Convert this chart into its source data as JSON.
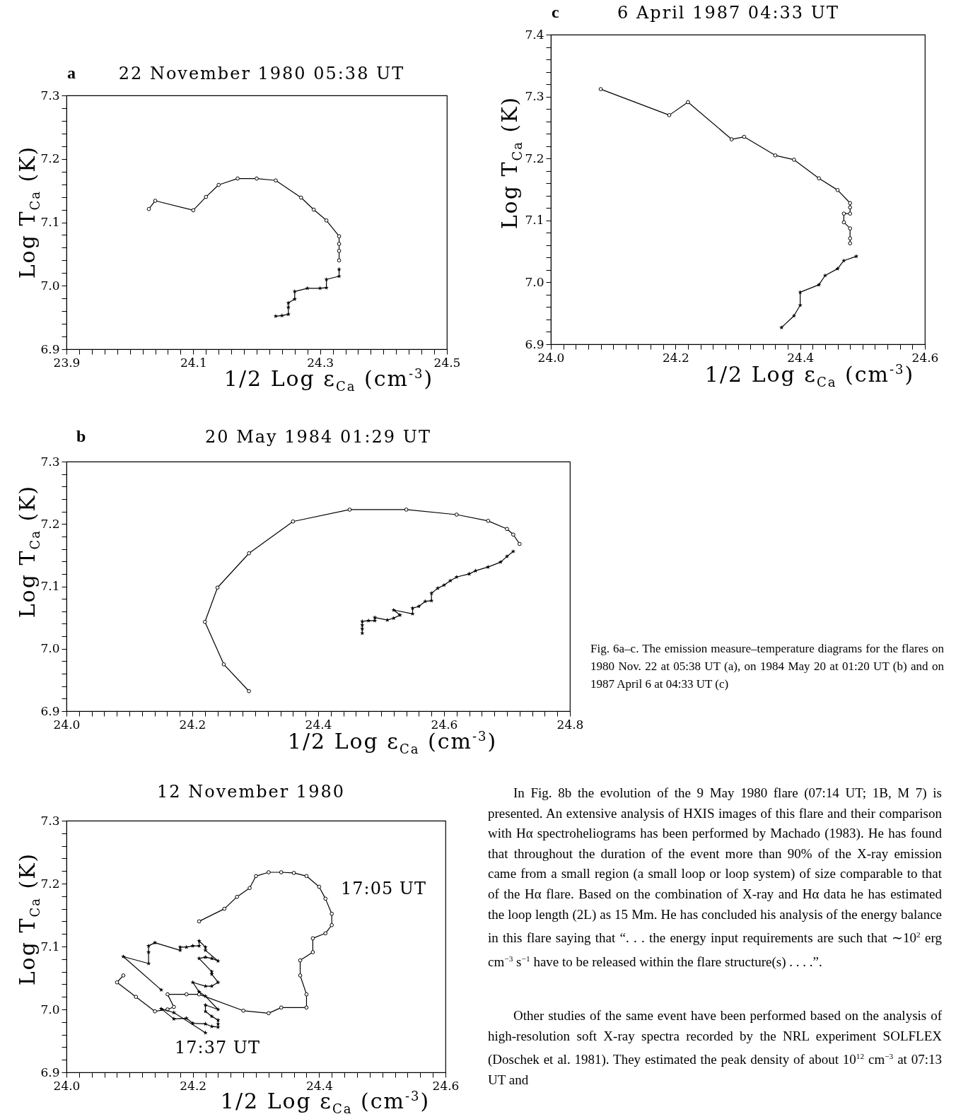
{
  "chart_data": [
    {
      "type": "line",
      "title": "22 November 1980 05:38 UT",
      "xlabel": "1/2 Log ε$_{Ca}$ (cm$^{-3}$)",
      "ylabel": "Log T$_{Ca}$ (K)",
      "grid": false,
      "xlim": [
        23.9,
        24.5
      ],
      "ylim": [
        6.9,
        7.3
      ],
      "xticks": [
        23.9,
        {
          "value": 23.92,
          "label": null
        },
        {
          "value": 23.94,
          "label": null
        },
        {
          "value": 23.96,
          "label": null
        },
        {
          "value": 23.98,
          "label": null
        },
        {
          "value": 24.0,
          "label": null
        },
        {
          "value": 24.02,
          "label": null
        },
        {
          "value": 24.04,
          "label": null
        },
        {
          "value": 24.06,
          "label": null
        },
        {
          "value": 24.08,
          "label": null
        },
        24.1,
        {
          "value": 24.12,
          "label": null
        },
        {
          "value": 24.14,
          "label": null
        },
        {
          "value": 24.16,
          "label": null
        },
        {
          "value": 24.18,
          "label": null
        },
        {
          "value": 24.2,
          "label": null
        },
        {
          "value": 24.22,
          "label": null
        },
        {
          "value": 24.24,
          "label": null
        },
        {
          "value": 24.26,
          "label": null
        },
        {
          "value": 24.28,
          "label": null
        },
        24.3,
        {
          "value": 24.32,
          "label": null
        },
        {
          "value": 24.34,
          "label": null
        },
        {
          "value": 24.36,
          "label": null
        },
        {
          "value": 24.38,
          "label": null
        },
        {
          "value": 24.4,
          "label": null
        },
        {
          "value": 24.42,
          "label": null
        },
        {
          "value": 24.44,
          "label": null
        },
        {
          "value": 24.46,
          "label": null
        },
        {
          "value": 24.48,
          "label": null
        },
        24.5
      ],
      "yticks": [
        6.9,
        {
          "value": 6.92,
          "label": null
        },
        {
          "value": 6.94,
          "label": null
        },
        {
          "value": 6.96,
          "label": null
        },
        {
          "value": 6.98,
          "label": null
        },
        {
          "value": 7.0,
          "label": "7.0"
        },
        {
          "value": 7.02,
          "label": null
        },
        {
          "value": 7.04,
          "label": null
        },
        {
          "value": 7.06,
          "label": null
        },
        {
          "value": 7.08,
          "label": null
        },
        7.1,
        {
          "value": 7.12,
          "label": null
        },
        {
          "value": 7.14,
          "label": null
        },
        {
          "value": 7.16,
          "label": null
        },
        {
          "value": 7.18,
          "label": null
        },
        7.2,
        {
          "value": 7.22,
          "label": null
        },
        {
          "value": 7.24,
          "label": null
        },
        {
          "value": 7.26,
          "label": null
        },
        {
          "value": 7.28,
          "label": null
        },
        7.3
      ],
      "series": [
        {
          "marker": "circle",
          "color": "#000000",
          "x": [
            24.03,
            24.04,
            24.1,
            24.12,
            24.14,
            24.17,
            24.2,
            24.23,
            24.27,
            24.29,
            24.31,
            24.33,
            24.33,
            24.33,
            24.33
          ],
          "values": [
            7.121,
            7.134,
            7.119,
            7.14,
            7.159,
            7.169,
            7.169,
            7.166,
            7.139,
            7.12,
            7.103,
            7.078,
            7.066,
            7.055,
            7.04
          ]
        },
        {
          "marker": "star",
          "color": "#000000",
          "x": [
            24.33,
            24.33,
            24.31,
            24.31,
            24.3,
            24.28,
            24.26,
            24.26,
            24.25,
            24.25,
            24.25,
            24.24,
            24.23
          ],
          "values": [
            7.026,
            7.015,
            7.01,
            6.997,
            6.996,
            6.996,
            6.991,
            6.979,
            6.973,
            6.966,
            6.955,
            6.953,
            6.952
          ]
        }
      ],
      "annotations": [
        "a"
      ]
    },
    {
      "type": "line",
      "title": "6 April 1987 04:33 UT",
      "xlabel": "1/2 Log ε$_{Ca}$ (cm$^{-3}$)",
      "ylabel": "Log T$_{Ca}$ (K)",
      "grid": false,
      "xlim": [
        24.0,
        24.6
      ],
      "ylim": [
        6.9,
        7.4
      ],
      "xticks": [
        {
          "value": 24.0,
          "label": "24.0"
        },
        {
          "value": 24.02,
          "label": null
        },
        {
          "value": 24.04,
          "label": null
        },
        {
          "value": 24.06,
          "label": null
        },
        {
          "value": 24.08,
          "label": null
        },
        {
          "value": 24.1,
          "label": null
        },
        {
          "value": 24.12,
          "label": null
        },
        {
          "value": 24.14,
          "label": null
        },
        {
          "value": 24.16,
          "label": null
        },
        {
          "value": 24.18,
          "label": null
        },
        24.2,
        {
          "value": 24.22,
          "label": null
        },
        {
          "value": 24.24,
          "label": null
        },
        {
          "value": 24.26,
          "label": null
        },
        {
          "value": 24.28,
          "label": null
        },
        {
          "value": 24.3,
          "label": null
        },
        {
          "value": 24.32,
          "label": null
        },
        {
          "value": 24.34,
          "label": null
        },
        {
          "value": 24.36,
          "label": null
        },
        {
          "value": 24.38,
          "label": null
        },
        24.4,
        {
          "value": 24.42,
          "label": null
        },
        {
          "value": 24.44,
          "label": null
        },
        {
          "value": 24.46,
          "label": null
        },
        {
          "value": 24.48,
          "label": null
        },
        {
          "value": 24.5,
          "label": null
        },
        {
          "value": 24.52,
          "label": null
        },
        {
          "value": 24.54,
          "label": null
        },
        {
          "value": 24.56,
          "label": null
        },
        {
          "value": 24.58,
          "label": null
        },
        24.6
      ],
      "yticks": [
        6.9,
        {
          "value": 6.92,
          "label": null
        },
        {
          "value": 6.94,
          "label": null
        },
        {
          "value": 6.96,
          "label": null
        },
        {
          "value": 6.98,
          "label": null
        },
        {
          "value": 7.0,
          "label": "7.0"
        },
        {
          "value": 7.02,
          "label": null
        },
        {
          "value": 7.04,
          "label": null
        },
        {
          "value": 7.06,
          "label": null
        },
        {
          "value": 7.08,
          "label": null
        },
        7.1,
        {
          "value": 7.12,
          "label": null
        },
        {
          "value": 7.14,
          "label": null
        },
        {
          "value": 7.16,
          "label": null
        },
        {
          "value": 7.18,
          "label": null
        },
        7.2,
        {
          "value": 7.22,
          "label": null
        },
        {
          "value": 7.24,
          "label": null
        },
        {
          "value": 7.26,
          "label": null
        },
        {
          "value": 7.28,
          "label": null
        },
        7.3,
        {
          "value": 7.32,
          "label": null
        },
        {
          "value": 7.34,
          "label": null
        },
        {
          "value": 7.36,
          "label": null
        },
        {
          "value": 7.38,
          "label": null
        },
        7.4
      ],
      "series": [
        {
          "marker": "circle",
          "color": "#000000",
          "x": [
            24.08,
            24.19,
            24.22,
            24.29,
            24.31,
            24.36,
            24.39,
            24.43,
            24.46,
            24.48,
            24.48,
            24.48,
            24.47,
            24.47,
            24.48,
            24.48,
            24.48
          ],
          "values": [
            7.312,
            7.27,
            7.291,
            7.231,
            7.235,
            7.205,
            7.198,
            7.168,
            7.149,
            7.128,
            7.121,
            7.111,
            7.111,
            7.097,
            7.087,
            7.071,
            7.063
          ]
        },
        {
          "marker": "star",
          "color": "#000000",
          "x": [
            24.49,
            24.47,
            24.46,
            24.44,
            24.43,
            24.4,
            24.4,
            24.39,
            24.37
          ],
          "values": [
            7.042,
            7.035,
            7.022,
            7.011,
            6.996,
            6.984,
            6.963,
            6.946,
            6.927
          ]
        }
      ],
      "annotations": [
        "c"
      ]
    },
    {
      "type": "line",
      "title": "20 May 1984 01:29 UT",
      "xlabel": "1/2 Log ε$_{Ca}$ (cm$^{-3}$)",
      "ylabel": "Log T$_{Ca}$ (K)",
      "grid": false,
      "xlim": [
        24.0,
        24.8
      ],
      "ylim": [
        6.9,
        7.3
      ],
      "xticks": [
        {
          "value": 24.0,
          "label": "24.0"
        },
        {
          "value": 24.02,
          "label": null
        },
        {
          "value": 24.04,
          "label": null
        },
        {
          "value": 24.06,
          "label": null
        },
        {
          "value": 24.08,
          "label": null
        },
        {
          "value": 24.1,
          "label": null
        },
        {
          "value": 24.12,
          "label": null
        },
        {
          "value": 24.14,
          "label": null
        },
        {
          "value": 24.16,
          "label": null
        },
        {
          "value": 24.18,
          "label": null
        },
        24.2,
        {
          "value": 24.22,
          "label": null
        },
        {
          "value": 24.24,
          "label": null
        },
        {
          "value": 24.26,
          "label": null
        },
        {
          "value": 24.28,
          "label": null
        },
        {
          "value": 24.3,
          "label": null
        },
        {
          "value": 24.32,
          "label": null
        },
        {
          "value": 24.34,
          "label": null
        },
        {
          "value": 24.36,
          "label": null
        },
        {
          "value": 24.38,
          "label": null
        },
        24.4,
        {
          "value": 24.42,
          "label": null
        },
        {
          "value": 24.44,
          "label": null
        },
        {
          "value": 24.46,
          "label": null
        },
        {
          "value": 24.48,
          "label": null
        },
        {
          "value": 24.5,
          "label": null
        },
        {
          "value": 24.52,
          "label": null
        },
        {
          "value": 24.54,
          "label": null
        },
        {
          "value": 24.56,
          "label": null
        },
        {
          "value": 24.58,
          "label": null
        },
        24.6,
        {
          "value": 24.62,
          "label": null
        },
        {
          "value": 24.64,
          "label": null
        },
        {
          "value": 24.66,
          "label": null
        },
        {
          "value": 24.68,
          "label": null
        },
        {
          "value": 24.7,
          "label": null
        },
        {
          "value": 24.72,
          "label": null
        },
        {
          "value": 24.74,
          "label": null
        },
        {
          "value": 24.76,
          "label": null
        },
        {
          "value": 24.78,
          "label": null
        },
        24.8
      ],
      "yticks": [
        6.9,
        {
          "value": 6.92,
          "label": null
        },
        {
          "value": 6.94,
          "label": null
        },
        {
          "value": 6.96,
          "label": null
        },
        {
          "value": 6.98,
          "label": null
        },
        {
          "value": 7.0,
          "label": "7.0"
        },
        {
          "value": 7.02,
          "label": null
        },
        {
          "value": 7.04,
          "label": null
        },
        {
          "value": 7.06,
          "label": null
        },
        {
          "value": 7.08,
          "label": null
        },
        7.1,
        {
          "value": 7.12,
          "label": null
        },
        {
          "value": 7.14,
          "label": null
        },
        {
          "value": 7.16,
          "label": null
        },
        {
          "value": 7.18,
          "label": null
        },
        7.2,
        {
          "value": 7.22,
          "label": null
        },
        {
          "value": 7.24,
          "label": null
        },
        {
          "value": 7.26,
          "label": null
        },
        {
          "value": 7.28,
          "label": null
        },
        7.3
      ],
      "series": [
        {
          "marker": "circle",
          "color": "#000000",
          "x": [
            24.29,
            24.25,
            24.22,
            24.24,
            24.29,
            24.36,
            24.45,
            24.54,
            24.62,
            24.67,
            24.7,
            24.71,
            24.72
          ],
          "values": [
            6.932,
            6.975,
            7.043,
            7.098,
            7.153,
            7.204,
            7.223,
            7.223,
            7.215,
            7.205,
            7.192,
            7.183,
            7.168
          ]
        },
        {
          "marker": "star",
          "color": "#000000",
          "x": [
            24.71,
            24.7,
            24.69,
            24.67,
            24.65,
            24.64,
            24.62,
            24.61,
            24.6,
            24.59,
            24.58,
            24.58,
            24.57,
            24.56,
            24.55,
            24.55,
            24.52,
            24.53,
            24.52,
            24.51,
            24.49,
            24.49,
            24.48,
            24.47,
            24.47,
            24.47,
            24.47
          ],
          "values": [
            7.156,
            7.148,
            7.139,
            7.131,
            7.125,
            7.12,
            7.115,
            7.109,
            7.102,
            7.097,
            7.089,
            7.077,
            7.076,
            7.068,
            7.065,
            7.056,
            7.062,
            7.054,
            7.049,
            7.046,
            7.05,
            7.045,
            7.045,
            7.044,
            7.038,
            7.032,
            7.025
          ]
        }
      ],
      "annotations": [
        "b",
        "Fig. 6a–c. The emission measure–temperature diagrams for the flares on 1980 Nov. 22 at 05:38 UT (a), on 1984 May 20 at 01:20 UT (b) and on 1987 April 6 at 04:33 UT (c)"
      ]
    },
    {
      "type": "line",
      "title": "12 November 1980",
      "xlabel": "1/2 Log ε$_{Ca}$ (cm$^{-3}$)",
      "ylabel": "Log T$_{Ca}$ (K)",
      "grid": false,
      "xlim": [
        24.0,
        24.6
      ],
      "ylim": [
        6.9,
        7.3
      ],
      "xticks": [
        {
          "value": 24.0,
          "label": "24.0"
        },
        {
          "value": 24.02,
          "label": null
        },
        {
          "value": 24.04,
          "label": null
        },
        {
          "value": 24.06,
          "label": null
        },
        {
          "value": 24.08,
          "label": null
        },
        {
          "value": 24.1,
          "label": null
        },
        {
          "value": 24.12,
          "label": null
        },
        {
          "value": 24.14,
          "label": null
        },
        {
          "value": 24.16,
          "label": null
        },
        {
          "value": 24.18,
          "label": null
        },
        24.2,
        {
          "value": 24.22,
          "label": null
        },
        {
          "value": 24.24,
          "label": null
        },
        {
          "value": 24.26,
          "label": null
        },
        {
          "value": 24.28,
          "label": null
        },
        {
          "value": 24.3,
          "label": null
        },
        {
          "value": 24.32,
          "label": null
        },
        {
          "value": 24.34,
          "label": null
        },
        {
          "value": 24.36,
          "label": null
        },
        {
          "value": 24.38,
          "label": null
        },
        24.4,
        {
          "value": 24.42,
          "label": null
        },
        {
          "value": 24.44,
          "label": null
        },
        {
          "value": 24.46,
          "label": null
        },
        {
          "value": 24.48,
          "label": null
        },
        {
          "value": 24.5,
          "label": null
        },
        {
          "value": 24.52,
          "label": null
        },
        {
          "value": 24.54,
          "label": null
        },
        {
          "value": 24.56,
          "label": null
        },
        {
          "value": 24.58,
          "label": null
        },
        24.6
      ],
      "yticks": [
        6.9,
        {
          "value": 6.92,
          "label": null
        },
        {
          "value": 6.94,
          "label": null
        },
        {
          "value": 6.96,
          "label": null
        },
        {
          "value": 6.98,
          "label": null
        },
        {
          "value": 7.0,
          "label": "7.0"
        },
        {
          "value": 7.02,
          "label": null
        },
        {
          "value": 7.04,
          "label": null
        },
        {
          "value": 7.06,
          "label": null
        },
        {
          "value": 7.08,
          "label": null
        },
        7.1,
        {
          "value": 7.12,
          "label": null
        },
        {
          "value": 7.14,
          "label": null
        },
        {
          "value": 7.16,
          "label": null
        },
        {
          "value": 7.18,
          "label": null
        },
        7.2,
        {
          "value": 7.22,
          "label": null
        },
        {
          "value": 7.24,
          "label": null
        },
        {
          "value": 7.26,
          "label": null
        },
        {
          "value": 7.28,
          "label": null
        },
        7.3
      ],
      "series": [
        {
          "marker": "circle",
          "color": "#000000",
          "x": [
            24.21,
            24.25,
            24.27,
            24.29,
            24.3,
            24.32,
            24.34,
            24.36,
            24.38,
            24.4,
            24.41,
            24.42,
            24.42,
            24.41,
            24.39,
            24.39,
            24.37,
            24.37,
            24.38,
            24.38,
            24.34,
            24.32,
            24.28,
            24.21,
            24.19,
            24.16,
            24.17,
            24.16,
            24.14,
            24.11,
            24.08,
            24.09
          ],
          "values": [
            7.14,
            7.16,
            7.179,
            7.193,
            7.212,
            7.218,
            7.218,
            7.217,
            7.212,
            7.195,
            7.176,
            7.152,
            7.134,
            7.121,
            7.113,
            7.091,
            7.078,
            7.054,
            7.024,
            7.003,
            7.003,
            6.994,
            6.998,
            7.024,
            7.024,
            7.024,
            7.004,
            7.0,
            6.997,
            7.02,
            7.043,
            7.054
          ]
        },
        {
          "marker": "star",
          "color": "#000000",
          "x": [
            24.15,
            24.09,
            24.13,
            24.13,
            24.13,
            24.14,
            24.18,
            24.18,
            24.19,
            24.2,
            24.21,
            24.21,
            24.22,
            24.22,
            24.24,
            24.23,
            24.22,
            24.21,
            24.23,
            24.23,
            24.24,
            24.23,
            24.22,
            24.2,
            24.21,
            24.22,
            24.24,
            24.22,
            24.22,
            24.23,
            24.24,
            24.24,
            24.24,
            24.23,
            24.22,
            24.2,
            24.19,
            24.17,
            24.15,
            24.17,
            24.22
          ],
          "values": [
            7.031,
            7.084,
            7.073,
            7.091,
            7.101,
            7.106,
            7.094,
            7.099,
            7.099,
            7.101,
            7.101,
            7.109,
            7.099,
            7.094,
            7.077,
            7.081,
            7.083,
            7.081,
            7.06,
            7.056,
            7.043,
            7.037,
            7.037,
            7.043,
            7.028,
            7.021,
            7.0,
            7.007,
            6.997,
            6.989,
            6.983,
            6.977,
            6.972,
            6.973,
            6.977,
            6.978,
            6.986,
            6.985,
            7.001,
            6.995,
            6.963
          ]
        }
      ],
      "annotations": [
        "17:05 UT",
        "17:37 UT",
        "In Fig. 8b the evolution of the 9 May 1980 flare (07:14 UT; 1B, M 7) is presented. An extensive analysis of HXIS images of this flare and their comparison with Hα spectroheliograms has been performed by Machado (1983). He has found that throughout the duration of the event more than 90% of the X-ray emission came from a small region (a small loop or loop system) of size comparable to that of the Hα flare. Based on the combination of X-ray and Hα data he has estimated the loop length (2L) as 15 Mm. He has concluded his analysis of the energy balance in this flare saying that “. . . the energy input requirements are such that ∼10$^{2}$ erg cm$^{−3}$ s$^{−1}$ have to be released within the flare structure(s) . . . .”.",
        "Other studies of the same event have been performed based on the analysis of high-resolution soft X-ray spectra recorded by the NRL experiment SOLFLEX (Doschek et al. 1981). They estimated the peak density of about 10$^{12}$ cm$^{−3}$ at 07:13 UT and"
      ]
    }
  ]
}
